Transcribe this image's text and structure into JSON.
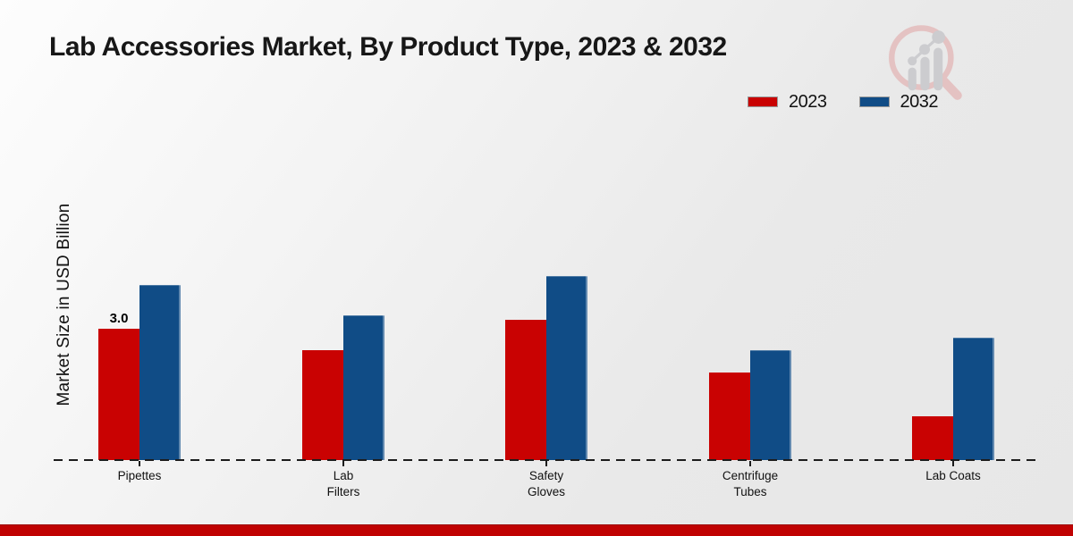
{
  "header": {
    "title": "Lab Accessories Market, By Product Type, 2023 & 2032"
  },
  "axes": {
    "ylabel": "Market Size in USD Billion"
  },
  "chart_data": {
    "type": "bar",
    "title": "Lab Accessories Market, By Product Type, 2023 & 2032",
    "xlabel": "",
    "ylabel": "Market Size in USD Billion",
    "categories": [
      "Pipettes",
      "Lab Filters",
      "Safety Gloves",
      "Centrifuge Tubes",
      "Lab Coats"
    ],
    "category_label_lines": [
      [
        "Pipettes"
      ],
      [
        "Lab",
        "Filters"
      ],
      [
        "Safety",
        "Gloves"
      ],
      [
        "Centrifuge",
        "Tubes"
      ],
      [
        "Lab Coats"
      ]
    ],
    "series": [
      {
        "name": "2023",
        "color": "#c90202",
        "values": [
          3.0,
          2.5,
          3.2,
          2.0,
          1.0
        ]
      },
      {
        "name": "2032",
        "color": "#104c86",
        "values": [
          4.0,
          3.3,
          4.2,
          2.5,
          2.8
        ]
      }
    ],
    "data_labels": [
      {
        "series": "2023",
        "category": "Pipettes",
        "text": "3.0"
      }
    ],
    "ylim": [
      0,
      4.5
    ],
    "grid": false,
    "legend_position": "top-right",
    "baseline_style": "dashed",
    "accent_footer_color": "#c00202"
  }
}
